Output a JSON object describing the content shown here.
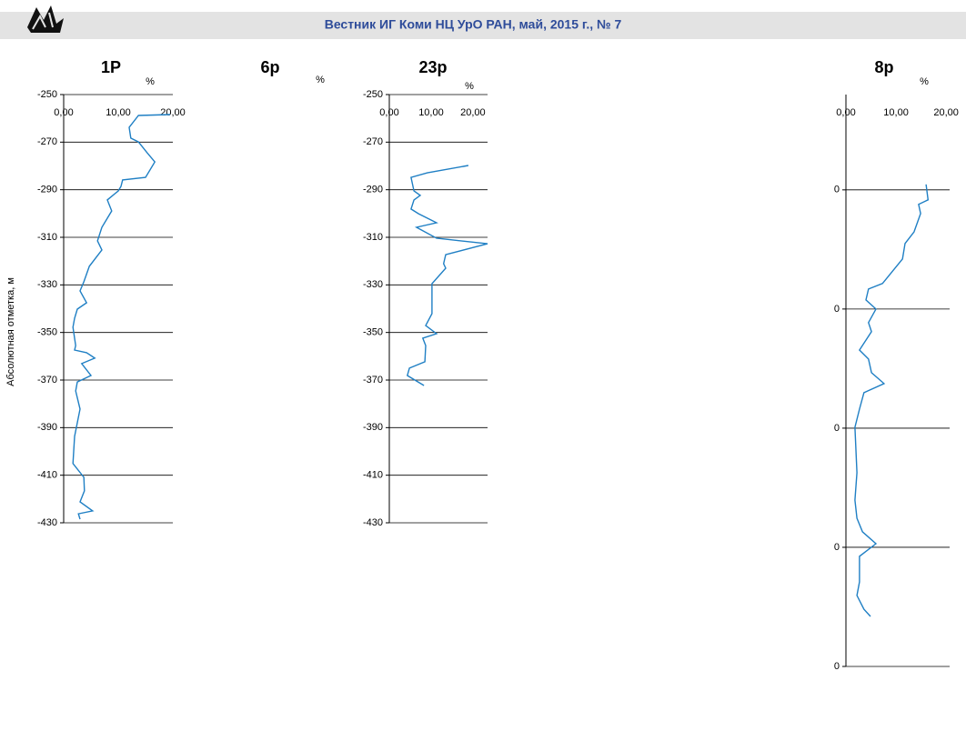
{
  "header": {
    "journal": "Вестник ИГ Коми НЦ УрО РАН, май, 2015 г., № 7"
  },
  "chart_data": [
    {
      "type": "line",
      "title": "1Р",
      "xlabel": "%",
      "ylabel": "Абсолютная отметка, м",
      "xlim": [
        0,
        20
      ],
      "xticks": [
        {
          "value": 0,
          "label": "0,00"
        },
        {
          "value": 10,
          "label": "10,00"
        },
        {
          "value": 20,
          "label": "20,00"
        }
      ],
      "ylim": [
        -250,
        -430
      ],
      "yticks": [
        -250,
        -270,
        -290,
        -310,
        -330,
        -350,
        -370,
        -390,
        -410,
        -430
      ],
      "grid": true,
      "series": [
        {
          "color": "#1f7fc4",
          "x": [
            19.5,
            13.7,
            12.0,
            12.3,
            13.7,
            15.3,
            16.7,
            15.0,
            10.8,
            10.5,
            10.0,
            8.0,
            8.8,
            7.0,
            6.2,
            7.0,
            4.7,
            3.7,
            3.0,
            4.2,
            2.5,
            2.0,
            1.7,
            2.2,
            2.0,
            4.2,
            5.7,
            3.3,
            5.0,
            2.5,
            2.2,
            3.0,
            2.0,
            1.7,
            3.7,
            3.8,
            3.0,
            5.3,
            2.7,
            3.0
          ],
          "values": [
            -258.4,
            -258.8,
            -263.8,
            -268.3,
            -269.9,
            -274.5,
            -278.3,
            -284.8,
            -285.9,
            -288.6,
            -290.5,
            -294.3,
            -298.9,
            -305.8,
            -311.5,
            -315.3,
            -322.2,
            -328.7,
            -332.5,
            -337.5,
            -340.2,
            -344.0,
            -347.8,
            -355.5,
            -357.4,
            -358.5,
            -360.8,
            -363.1,
            -368.1,
            -370.8,
            -374.6,
            -382.2,
            -393.7,
            -405.1,
            -410.9,
            -416.6,
            -421.2,
            -425.0,
            -426.2,
            -428.5
          ]
        }
      ]
    },
    {
      "type": "line",
      "title": "6р",
      "xlabel": "%"
    },
    {
      "type": "line",
      "title": "23р",
      "xlabel": "%",
      "xlim": [
        0,
        23.5
      ],
      "xticks": [
        {
          "value": 0,
          "label": "0,00"
        },
        {
          "value": 10,
          "label": "10,00"
        },
        {
          "value": 20,
          "label": "20,00"
        }
      ],
      "ylim": [
        -250,
        -430
      ],
      "yticks": [
        -250,
        -270,
        -290,
        -310,
        -330,
        -350,
        -370,
        -390,
        -410,
        -430
      ],
      "grid": true,
      "series": [
        {
          "color": "#1f7fc4",
          "x": [
            18.9,
            9.1,
            5.2,
            5.9,
            7.4,
            5.9,
            5.2,
            7.0,
            11.3,
            6.5,
            11.3,
            23.5,
            13.5,
            13.0,
            13.5,
            10.2,
            10.2,
            8.7,
            11.3,
            8.0,
            8.7,
            8.5,
            4.8,
            4.3,
            8.3
          ],
          "values": [
            -279.8,
            -282.9,
            -284.8,
            -290.5,
            -292.4,
            -294.3,
            -298.1,
            -300.1,
            -303.9,
            -305.8,
            -310.4,
            -312.7,
            -317.3,
            -321.1,
            -323.0,
            -329.5,
            -342.1,
            -347.1,
            -350.5,
            -352.4,
            -355.5,
            -362.3,
            -365.0,
            -368.1,
            -372.3
          ]
        }
      ]
    },
    {
      "type": "line",
      "title": "8р",
      "xlabel": "%",
      "xlim": [
        0,
        20.7
      ],
      "xticks": [
        {
          "value": 0,
          "label": "0,00"
        },
        {
          "value": 10,
          "label": "10,00"
        },
        {
          "value": 20,
          "label": "20,00"
        }
      ],
      "ylim": [
        -260,
        -500
      ],
      "yticks": [
        {
          "value": -300,
          "label": "0"
        },
        {
          "value": -350,
          "label": "0"
        },
        {
          "value": -400,
          "label": "0"
        },
        {
          "value": -450,
          "label": "0"
        },
        {
          "value": -500,
          "label": "0"
        }
      ],
      "grid": true,
      "series": [
        {
          "color": "#1f7fc4",
          "x": [
            16.0,
            16.4,
            14.5,
            14.9,
            13.6,
            11.8,
            11.3,
            7.3,
            4.5,
            4.0,
            6.0,
            4.5,
            5.1,
            2.7,
            4.5,
            5.1,
            7.6,
            3.6,
            2.7,
            1.8,
            2.2,
            1.8,
            2.2,
            3.3,
            6.0,
            2.7,
            2.7,
            2.2,
            3.6,
            4.9
          ],
          "values": [
            -297.7,
            -304.2,
            -306.1,
            -309.9,
            -317.6,
            -322.5,
            -329.0,
            -339.3,
            -341.6,
            -346.2,
            -350.0,
            -355.7,
            -359.5,
            -367.2,
            -371.0,
            -376.7,
            -381.3,
            -385.1,
            -392.0,
            -399.6,
            -418.7,
            -430.2,
            -437.8,
            -443.5,
            -448.5,
            -453.8,
            -464.5,
            -470.2,
            -476.0,
            -479.0
          ]
        }
      ]
    }
  ]
}
